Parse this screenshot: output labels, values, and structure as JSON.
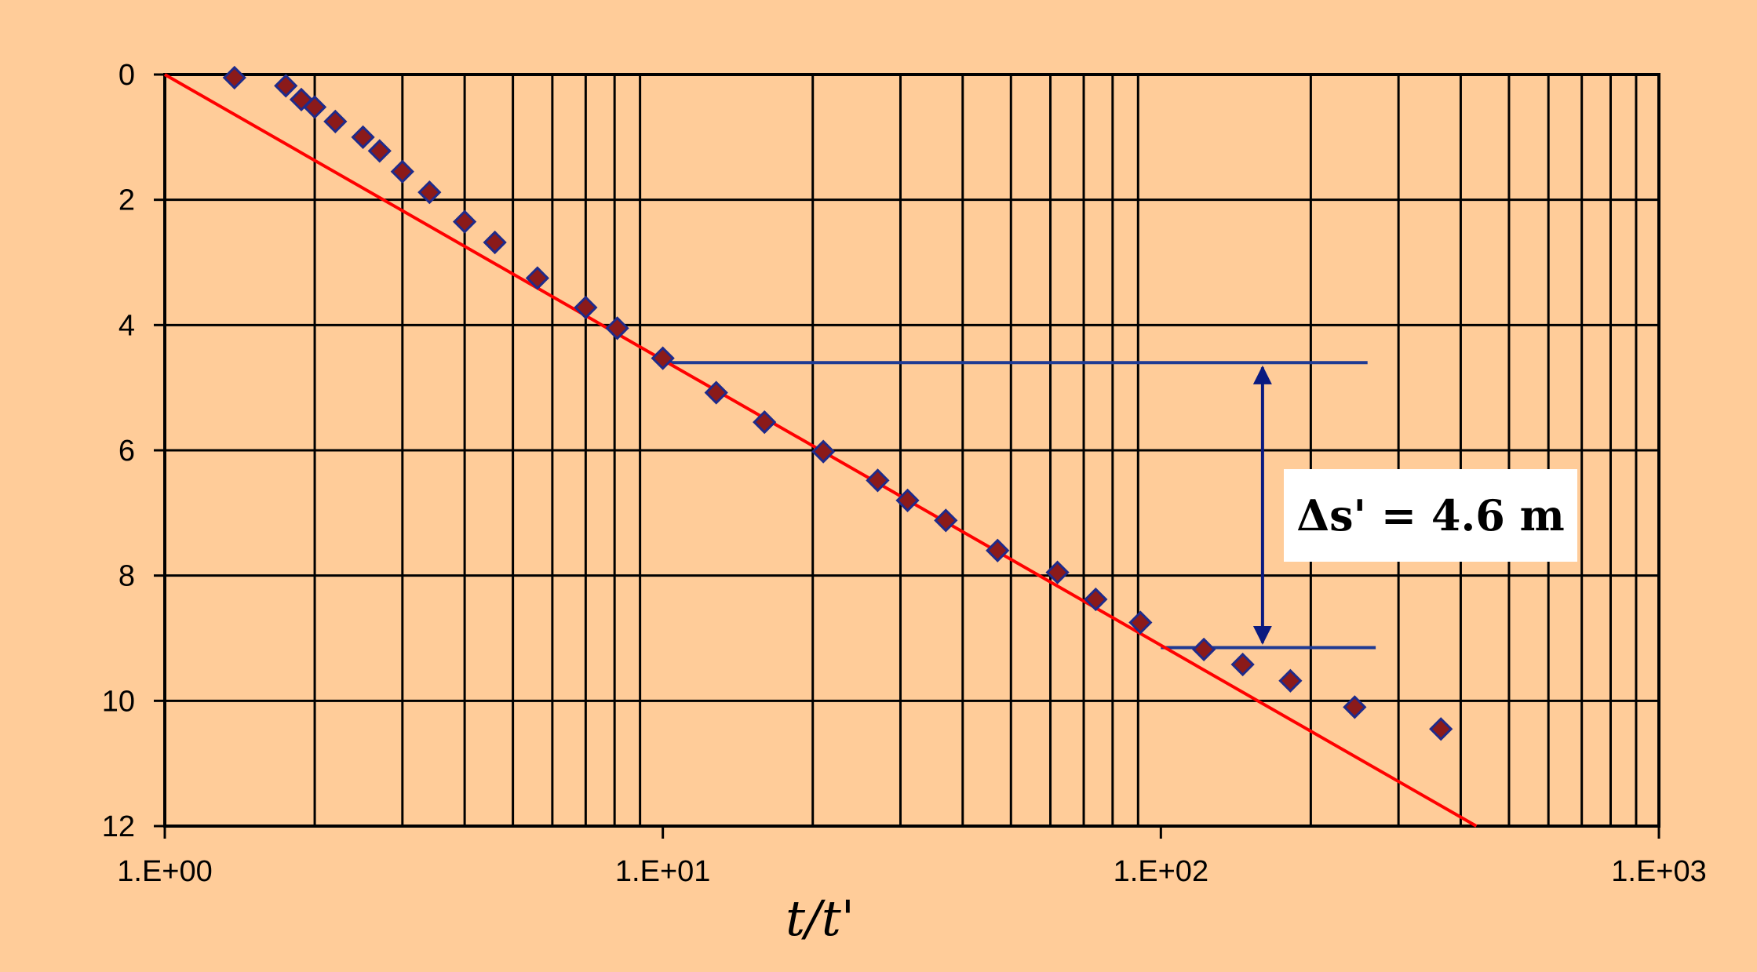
{
  "chart_data": {
    "type": "scatter",
    "title": "",
    "xlabel": "t/t'",
    "ylabel": "",
    "x_scale": "log",
    "y_inverted": true,
    "xlim": [
      1,
      1000
    ],
    "ylim": [
      0,
      12
    ],
    "grid": true,
    "x_ticks": [
      "1.E+00",
      "1.E+01",
      "1.E+02",
      "1.E+03"
    ],
    "y_ticks": [
      "0",
      "2",
      "4",
      "6",
      "8",
      "10",
      "12"
    ],
    "series": [
      {
        "marker": "diamond",
        "color": "#8B1A1A",
        "edge_color": "#1F2A8A",
        "x": [
          1.38,
          1.75,
          1.88,
          2.0,
          2.2,
          2.5,
          2.7,
          3.0,
          3.4,
          4.0,
          4.6,
          5.6,
          7.0,
          8.1,
          10.0,
          12.8,
          16.0,
          21.0,
          27.0,
          31.0,
          37.0,
          47.0,
          62.0,
          74.0,
          91.0,
          122.0,
          146.0,
          182.0,
          245.0,
          365.0
        ],
        "y": [
          0.05,
          0.18,
          0.4,
          0.52,
          0.75,
          1.0,
          1.22,
          1.55,
          1.88,
          2.35,
          2.68,
          3.25,
          3.72,
          4.05,
          4.53,
          5.08,
          5.55,
          6.02,
          6.48,
          6.8,
          7.12,
          7.6,
          7.95,
          8.38,
          8.75,
          9.18,
          9.42,
          9.68,
          10.1,
          10.45
        ]
      }
    ],
    "fit_line": {
      "color": "#FF0000",
      "x": [
        1,
        430
      ],
      "y": [
        0,
        12
      ]
    },
    "reference_lines": {
      "color": "#1F3A93",
      "upper": {
        "y": 4.6,
        "x_start": 10,
        "x_end": 260
      },
      "lower": {
        "y": 9.15,
        "x_start": 100,
        "x_end": 270
      }
    },
    "annotation": {
      "arrow_x": 160,
      "y_from": 4.6,
      "y_to": 9.15,
      "text": "Δs' = 4.6 m"
    }
  }
}
